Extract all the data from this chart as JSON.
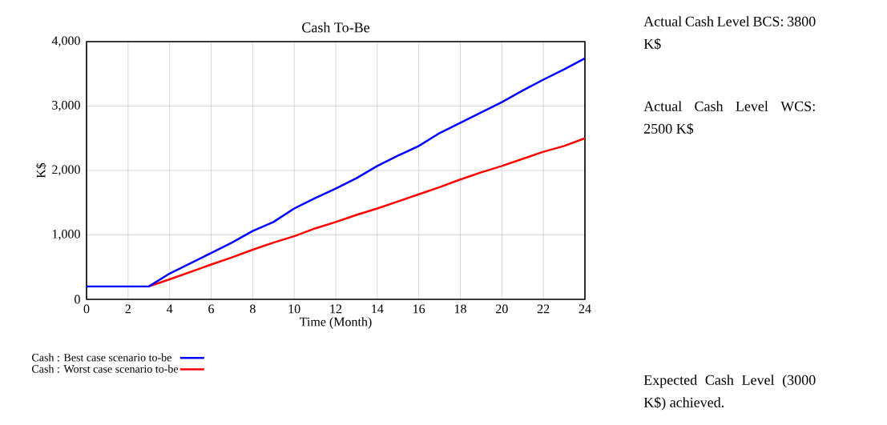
{
  "chart_data": {
    "type": "line",
    "title": "Cash To-Be",
    "xlabel": "Time (Month)",
    "ylabel": "K$",
    "xlim": [
      0,
      24
    ],
    "xticks": [
      0,
      2,
      4,
      6,
      8,
      10,
      12,
      14,
      16,
      18,
      20,
      22,
      24
    ],
    "ylim": [
      0,
      4000
    ],
    "yticks": [
      {
        "value": 0,
        "label": "0"
      },
      {
        "value": 1000,
        "label": "1,000"
      },
      {
        "value": 2000,
        "label": "2,000"
      },
      {
        "value": 3000,
        "label": "3,000"
      },
      {
        "value": 4000,
        "label": "4,000"
      }
    ],
    "grid": true,
    "legend": "bottom",
    "marker": "none",
    "line_style": "solid",
    "x": [
      0,
      3,
      4,
      6,
      7,
      8,
      9,
      10,
      11,
      12,
      13,
      14,
      15,
      16,
      17,
      18,
      19,
      20,
      21,
      22,
      23,
      24
    ],
    "series": [
      {
        "name": "Cash : Best case scenario to-be",
        "color": "#0000ff",
        "values": [
          200,
          200,
          400,
          720,
          880,
          1060,
          1200,
          1410,
          1570,
          1720,
          1880,
          2070,
          2230,
          2380,
          2580,
          2740,
          2900,
          3060,
          3240,
          3410,
          3570,
          3740
        ]
      },
      {
        "name": "Cash : Worst case scenario to-be",
        "color": "#ff0000",
        "values": [
          null,
          200,
          310,
          540,
          650,
          770,
          880,
          980,
          1100,
          1200,
          1310,
          1410,
          1520,
          1630,
          1740,
          1860,
          1970,
          2070,
          2180,
          2290,
          2380,
          2500
        ]
      }
    ],
    "annotations": [
      "Actual Cash Level BCS: 3800 K$",
      "Actual Cash Level WCS: 2500 K$",
      "Expected Cash Level (3000 K$) achieved."
    ]
  }
}
